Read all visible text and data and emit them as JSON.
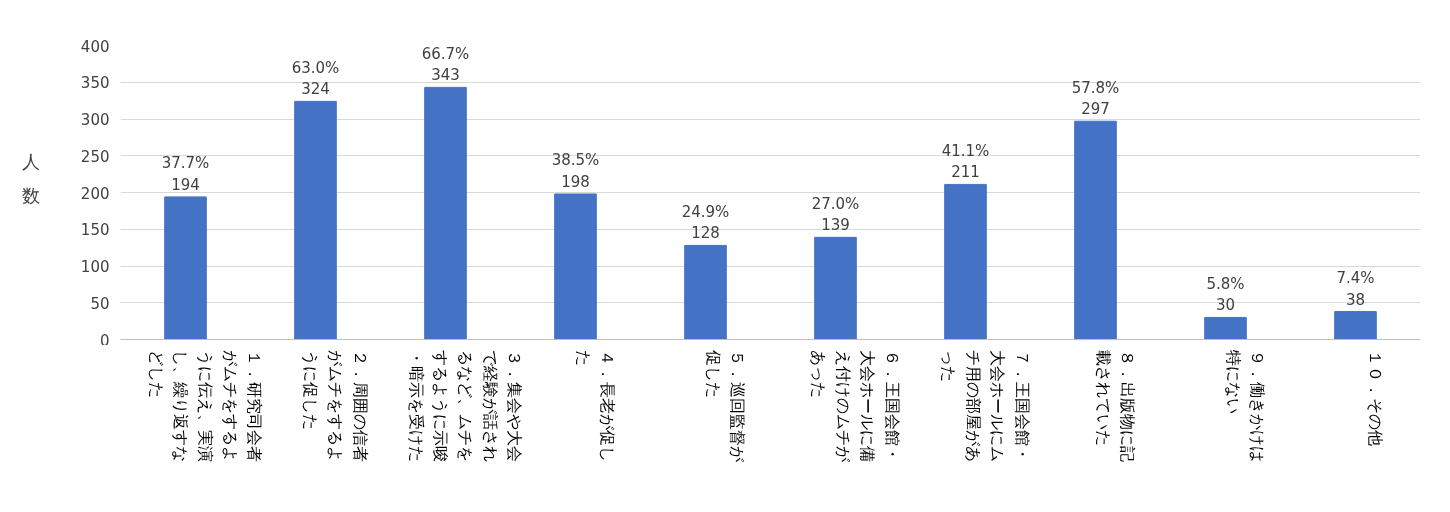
{
  "chart_data": {
    "type": "bar",
    "ylabel": "人数",
    "categories": [
      "１．研究司会者がムチをするように伝え、実演し、繰り返すなどした",
      "２．周囲の信者がムチをするように促した",
      "３．集会や大会で経験が話されるなど、ムチをするように示唆・暗示を受けた",
      "４．長老が促した",
      "５．巡回監督が促した",
      "６．王国会館・大会ホールに備え付けのムチがあった",
      "７．王国会館・大会ホールにムチ用の部屋があった",
      "８．出版物に記載されていた",
      "９．働きかけは特にない",
      "１０．その他"
    ],
    "values": [
      194,
      324,
      343,
      198,
      128,
      139,
      211,
      297,
      30,
      38
    ],
    "value_labels": [
      "37.7%\n194",
      "63.0%\n324",
      "66.7%\n343",
      "38.5%\n198",
      "24.9%\n128",
      "27.0%\n139",
      "41.1%\n211",
      "57.8%\n297",
      "5.8%\n30",
      "7.4%\n38"
    ],
    "color": "#4472c4",
    "ylim": [
      0,
      400
    ],
    "yticks": [
      0,
      50,
      100,
      150,
      200,
      250,
      300,
      350,
      400
    ],
    "grid": "y"
  }
}
